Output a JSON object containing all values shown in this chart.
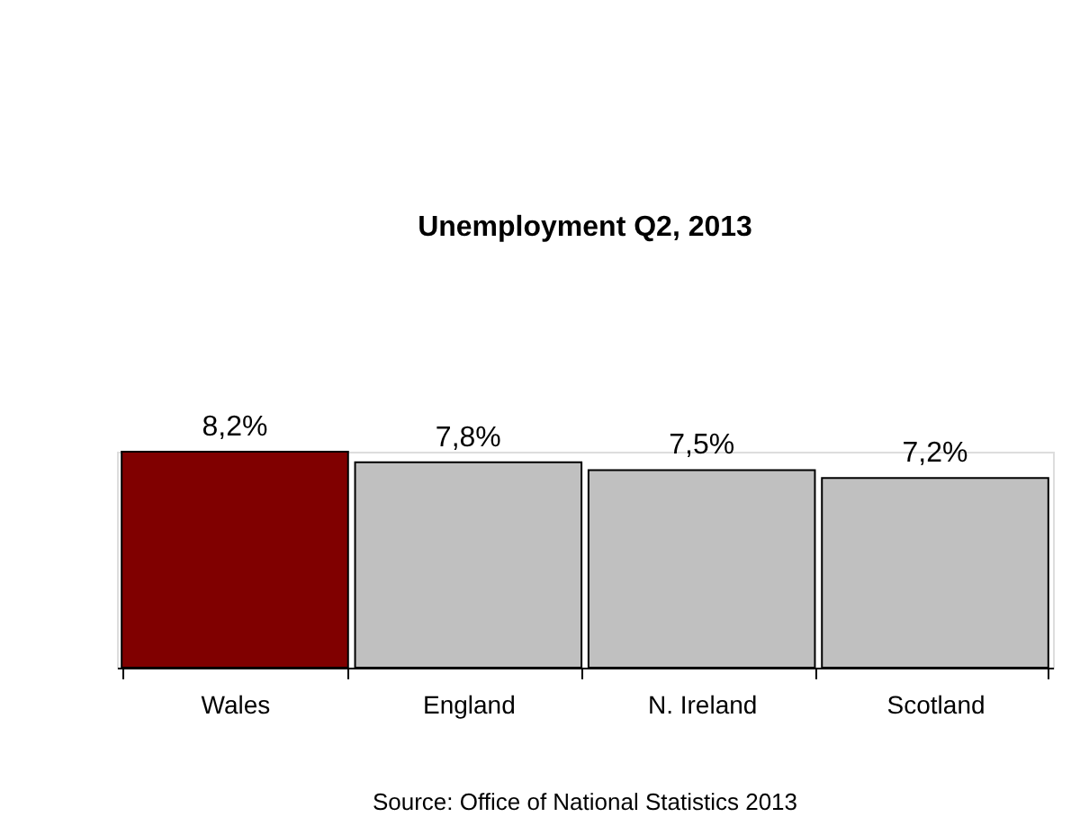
{
  "chart_data": {
    "type": "bar",
    "title": "Unemployment  Q2, 2013",
    "categories": [
      "Wales",
      "England",
      "N. Ireland",
      "Scotland"
    ],
    "values": [
      8.2,
      7.8,
      7.5,
      7.2
    ],
    "colors": [
      "#800000",
      "#c0c0c0",
      "#c0c0c0",
      "#c0c0c0"
    ],
    "value_labels": [
      "8,2%",
      "7,8%",
      "7,5%",
      "7,2%"
    ],
    "annotations": [
      "Source: Office of National Statistics 2013"
    ],
    "grid": false
  }
}
